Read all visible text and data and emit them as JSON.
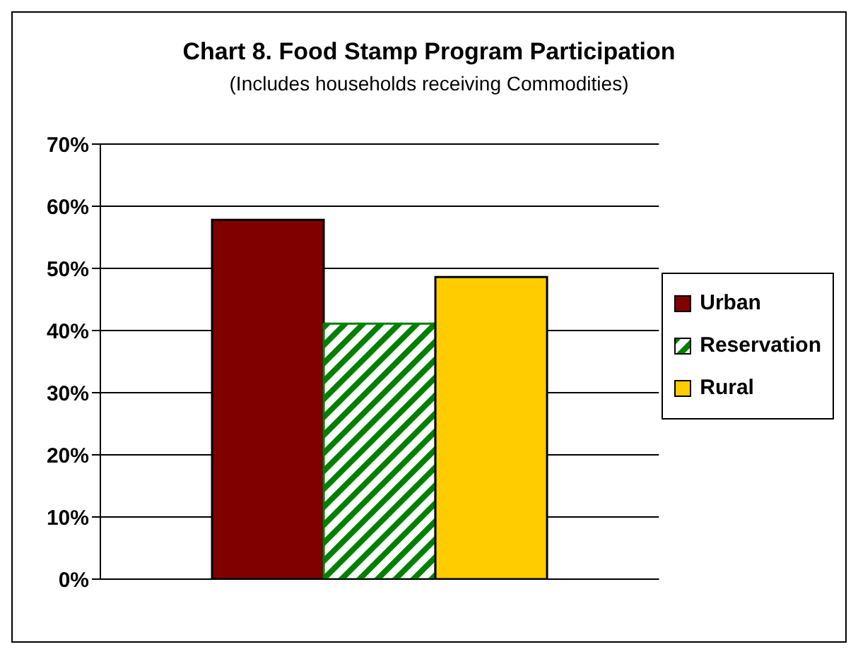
{
  "chart_data": {
    "type": "bar",
    "title": "Chart 8. Food Stamp Program Participation",
    "subtitle": "(Includes households receiving Commodities)",
    "categories": [
      null
    ],
    "series": [
      {
        "name": "Urban",
        "color": "#800000",
        "values": [
          57.8
        ]
      },
      {
        "name": "Reservation",
        "color": "#008000",
        "values": [
          41.1
        ]
      },
      {
        "name": "Rural",
        "color": "#ffcc00",
        "values": [
          48.6
        ]
      }
    ],
    "ylim": [
      0,
      70
    ],
    "yticks": [
      {
        "value": 0,
        "label": "0%"
      },
      {
        "value": 10,
        "label": "10%"
      },
      {
        "value": 20,
        "label": "20%"
      },
      {
        "value": 30,
        "label": "30%"
      },
      {
        "value": 40,
        "label": "40%"
      },
      {
        "value": 50,
        "label": "50%"
      },
      {
        "value": 60,
        "label": "60%"
      },
      {
        "value": 70,
        "label": "70%"
      }
    ],
    "grid": "y",
    "legend": "right"
  }
}
